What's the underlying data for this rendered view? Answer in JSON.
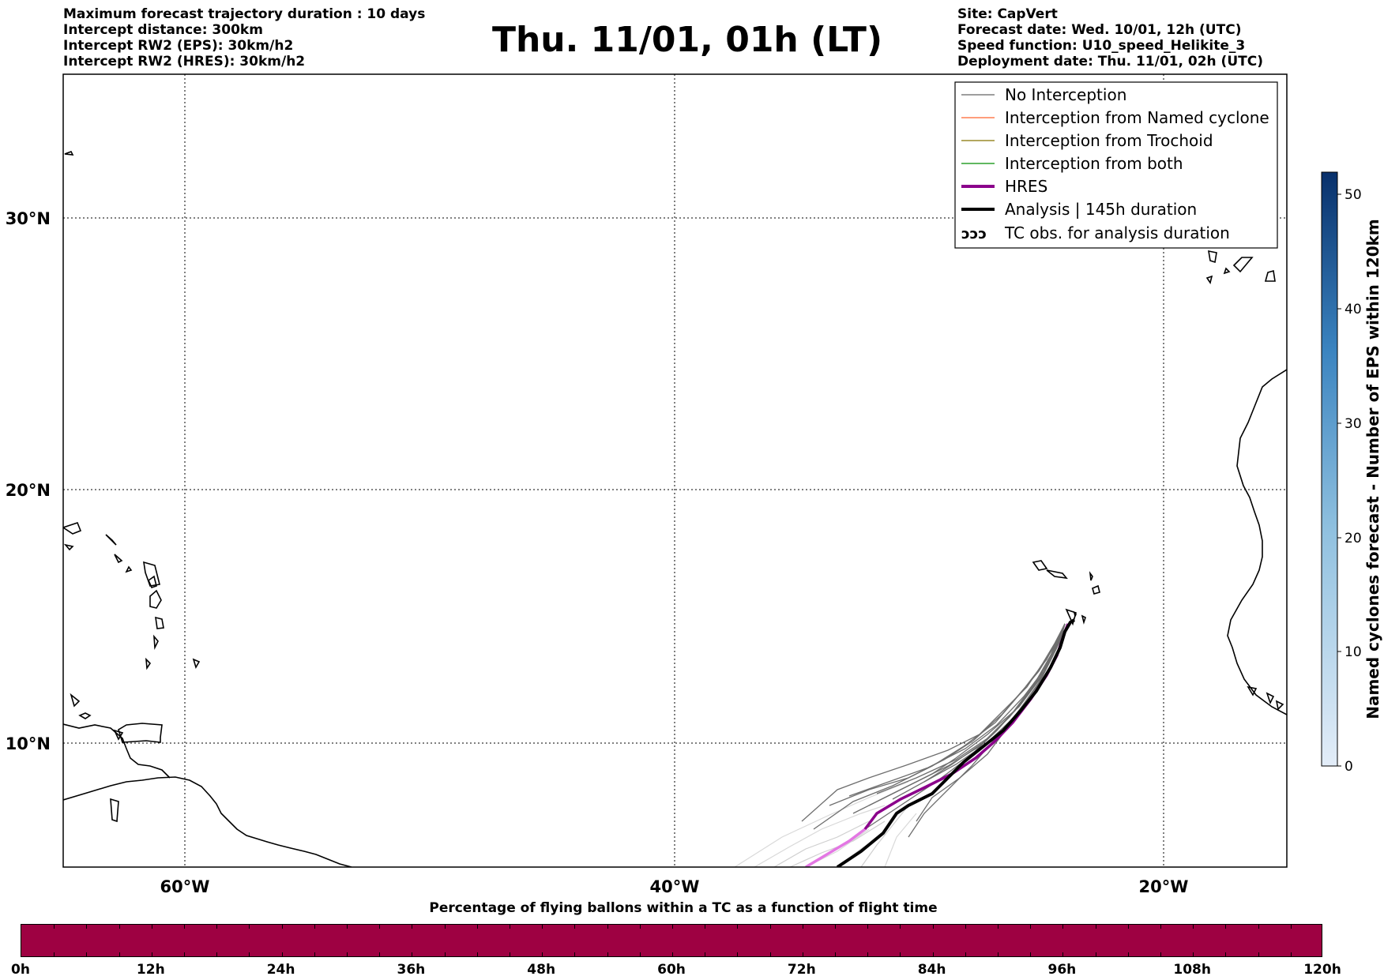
{
  "header": {
    "left": [
      "Maximum forecast trajectory duration : 10 days",
      "Intercept distance: 300km",
      "Intercept RW2 (EPS):  30km/h2",
      "Intercept RW2 (HRES): 30km/h2"
    ],
    "title": "Thu. 11/01, 01h (LT)",
    "right": [
      "Site: CapVert",
      "Forecast date: Wed. 10/01, 12h (UTC)",
      "Speed function: U10_speed_Helikite_3",
      "Deployment date: Thu. 11/01, 02h (UTC)"
    ]
  },
  "map": {
    "lat_labels": [
      "30°N",
      "20°N",
      "10°N"
    ],
    "lon_labels": [
      "60°W",
      "40°W",
      "20°W"
    ],
    "lon_range": [
      -65,
      -15
    ],
    "lat_range": [
      5.2,
      36.0
    ],
    "legend": [
      {
        "label": "No Interception",
        "color": "#7f7f7f",
        "style": "thin"
      },
      {
        "label": "Interception from Named cyclone",
        "color": "#ff7f50",
        "style": "thin"
      },
      {
        "label": "Interception from Trochoid",
        "color": "#9a8a2a",
        "style": "thin"
      },
      {
        "label": "Interception from both",
        "color": "#2ca02c",
        "style": "thin"
      },
      {
        "label": "HRES",
        "color": "#8b008b",
        "style": "thick"
      },
      {
        "label": "Analysis | 145h duration",
        "color": "#000000",
        "style": "thick"
      },
      {
        "label": "TC obs. for analysis duration",
        "color": "#000000",
        "style": "symbol"
      }
    ]
  },
  "colorbar": {
    "title": "Named cyclones forecast - Number of EPS within 120km",
    "ticks": [
      "0",
      "10",
      "20",
      "30",
      "40",
      "50"
    ],
    "range": [
      0,
      52
    ],
    "color_low": "#e3edf8",
    "color_high": "#08306b"
  },
  "timebar": {
    "title": "Percentage of flying ballons within a TC as a function of flight time",
    "ticks": [
      "0h",
      "12h",
      "24h",
      "36h",
      "48h",
      "60h",
      "72h",
      "84h",
      "96h",
      "108h",
      "120h"
    ],
    "fill_color": "#9e0142"
  }
}
